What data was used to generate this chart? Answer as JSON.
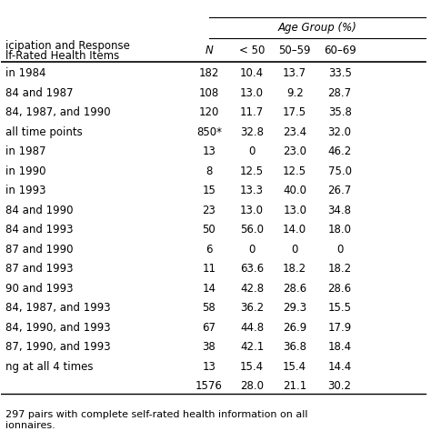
{
  "header_top": "Age Group (%)",
  "header_row": [
    "N",
    "< 50",
    "50–59",
    "60–69"
  ],
  "col0_label": [
    "icipation and Response",
    "lf-Rated Health Items"
  ],
  "rows": [
    [
      "in 1984",
      "182",
      "10.4",
      "13.7",
      "33.5"
    ],
    [
      "84 and 1987",
      "108",
      "13.0",
      "9.2",
      "28.7"
    ],
    [
      "84, 1987, and 1990",
      "120",
      "11.7",
      "17.5",
      "35.8"
    ],
    [
      "all time points",
      "850*",
      "32.8",
      "23.4",
      "32.0"
    ],
    [
      "in 1987",
      "13",
      "0",
      "23.0",
      "46.2"
    ],
    [
      "in 1990",
      "8",
      "12.5",
      "12.5",
      "75.0"
    ],
    [
      "in 1993",
      "15",
      "13.3",
      "40.0",
      "26.7"
    ],
    [
      "84 and 1990",
      "23",
      "13.0",
      "13.0",
      "34.8"
    ],
    [
      "84 and 1993",
      "50",
      "56.0",
      "14.0",
      "18.0"
    ],
    [
      "87 and 1990",
      "6",
      "0",
      "0",
      "0"
    ],
    [
      "87 and 1993",
      "11",
      "63.6",
      "18.2",
      "18.2"
    ],
    [
      "90 and 1993",
      "14",
      "42.8",
      "28.6",
      "28.6"
    ],
    [
      "84, 1987, and 1993",
      "58",
      "36.2",
      "29.3",
      "15.5"
    ],
    [
      "84, 1990, and 1993",
      "67",
      "44.8",
      "26.9",
      "17.9"
    ],
    [
      "87, 1990, and 1993",
      "38",
      "42.1",
      "36.8",
      "18.4"
    ],
    [
      "ng at all 4 times",
      "13",
      "15.4",
      "15.4",
      "14.4"
    ],
    [
      "",
      "1576",
      "28.0",
      "21.1",
      "30.2"
    ]
  ],
  "footnote": "297 pairs with complete self-rated health information on all\nionnaires.",
  "bg_color": "#ffffff",
  "text_color": "#000000",
  "line_color": "#000000",
  "font_size": 8.5,
  "header_font_size": 8.5
}
